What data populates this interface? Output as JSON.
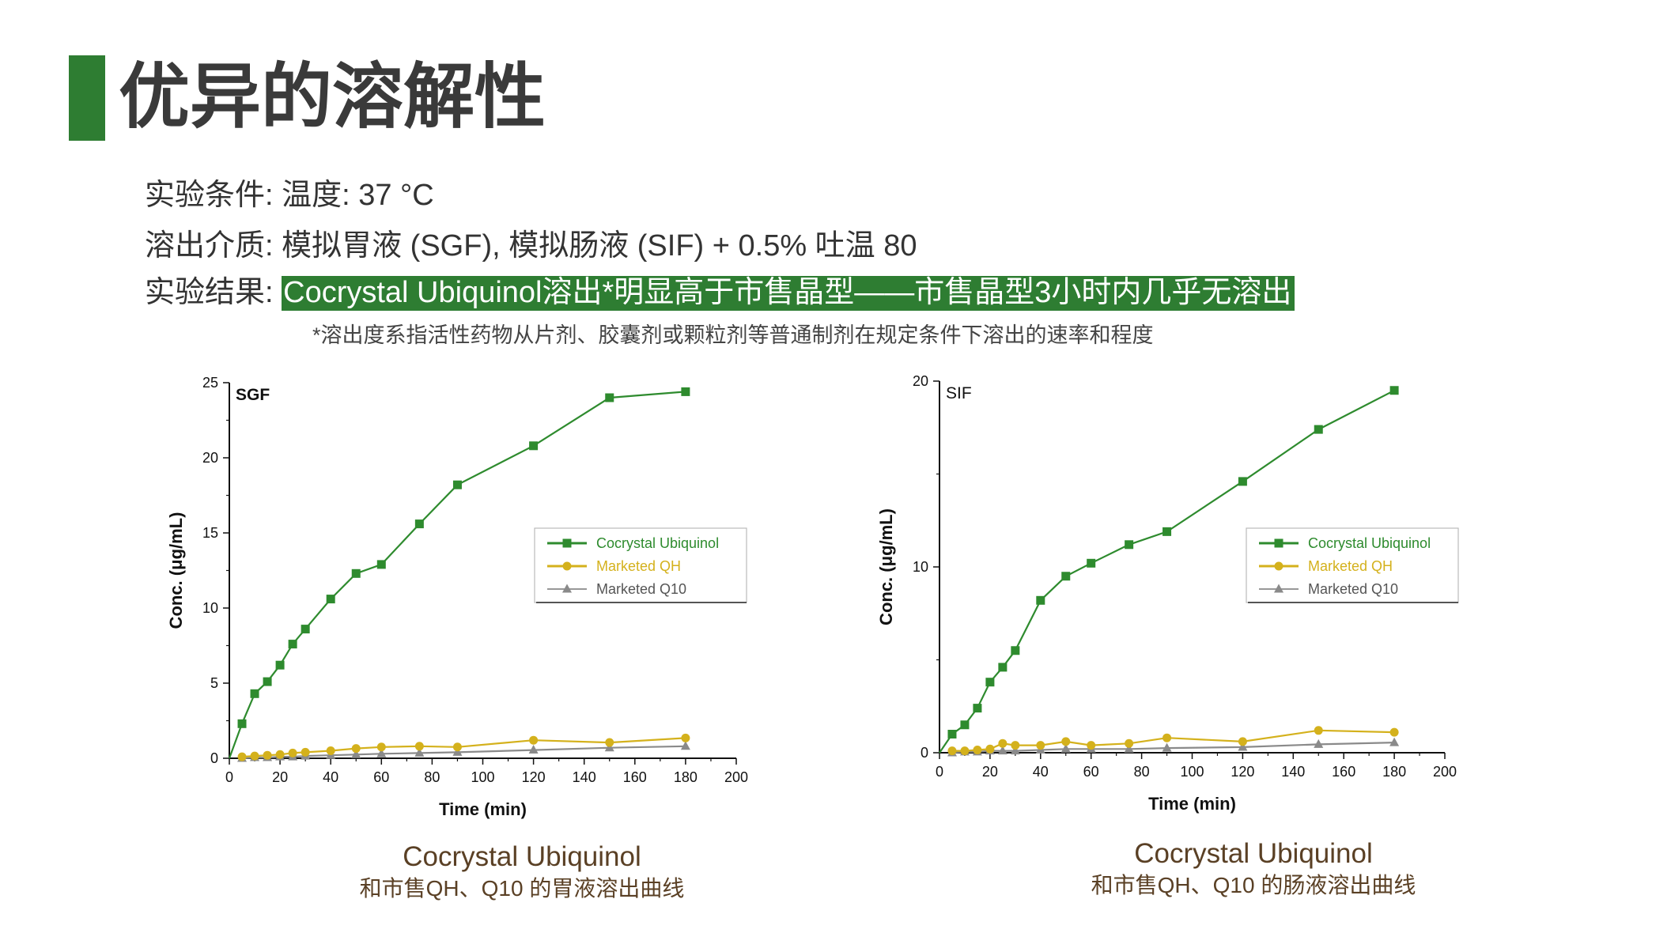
{
  "page": {
    "title": "优异的溶解性",
    "condition_line1": "实验条件: 温度: 37 °C",
    "condition_line2": "溶出介质: 模拟胃液 (SGF), 模拟肠液 (SIF) + 0.5% 吐温 80",
    "result_label": "实验结果: ",
    "result_text": "Cocrystal Ubiquinol溶出*明显高于市售晶型——市售晶型3小时内几乎无溶出",
    "footnote": "*溶出度系指活性药物从片剂、胶囊剂或颗粒剂等普通制剂在规定条件下溶出的速率和程度",
    "accent_color": "#2e7d32"
  },
  "captions": [
    {
      "line1": "Cocrystal Ubiquinol",
      "line2": "和市售QH、Q10 的胃液溶出曲线"
    },
    {
      "line1": "Cocrystal Ubiquinol",
      "line2": "和市售QH、Q10 的肠液溶出曲线"
    }
  ],
  "chart_data": [
    {
      "type": "line",
      "panel_label": "SGF",
      "xlabel": "Time (min)",
      "ylabel": "Conc. (μg/mL)",
      "xlim": [
        0,
        200
      ],
      "ylim": [
        0,
        25
      ],
      "xticks": [
        0,
        20,
        40,
        60,
        80,
        100,
        120,
        140,
        160,
        180,
        200
      ],
      "yticks": [
        0,
        5,
        10,
        15,
        20,
        25
      ],
      "legend_position": "right",
      "series": [
        {
          "name": "Cocrystal Ubiquinol",
          "color": "#2e8b2e",
          "marker": "square",
          "x": [
            0,
            5,
            10,
            15,
            20,
            25,
            30,
            40,
            50,
            60,
            75,
            90,
            120,
            150,
            180
          ],
          "y": [
            0,
            2.3,
            4.3,
            5.1,
            6.2,
            7.6,
            8.6,
            10.6,
            12.3,
            12.9,
            15.6,
            18.2,
            20.8,
            24.0,
            24.4
          ]
        },
        {
          "name": "Marketed QH",
          "color": "#d4b11c",
          "marker": "circle",
          "x": [
            5,
            10,
            15,
            20,
            25,
            30,
            40,
            50,
            60,
            75,
            90,
            120,
            150,
            180
          ],
          "y": [
            0.1,
            0.15,
            0.2,
            0.25,
            0.35,
            0.4,
            0.5,
            0.65,
            0.75,
            0.8,
            0.75,
            1.2,
            1.05,
            1.35
          ]
        },
        {
          "name": "Marketed Q10",
          "color": "#8a8a8a",
          "marker": "triangle",
          "x": [
            5,
            10,
            15,
            20,
            25,
            30,
            40,
            50,
            60,
            75,
            90,
            120,
            150,
            180
          ],
          "y": [
            0,
            0.05,
            0.05,
            0.1,
            0.1,
            0.15,
            0.2,
            0.25,
            0.3,
            0.35,
            0.4,
            0.55,
            0.7,
            0.8
          ]
        }
      ]
    },
    {
      "type": "line",
      "panel_label": "SIF",
      "xlabel": "Time (min)",
      "ylabel": "Conc. (μg/mL)",
      "xlim": [
        0,
        200
      ],
      "ylim": [
        0,
        20
      ],
      "xticks": [
        0,
        20,
        40,
        60,
        80,
        100,
        120,
        140,
        160,
        180,
        200
      ],
      "yticks": [
        0,
        10,
        20
      ],
      "legend_position": "right",
      "series": [
        {
          "name": "Cocrystal Ubiquinol",
          "color": "#2e8b2e",
          "marker": "square",
          "x": [
            0,
            5,
            10,
            15,
            20,
            25,
            30,
            40,
            50,
            60,
            75,
            90,
            120,
            150,
            180
          ],
          "y": [
            0,
            1.0,
            1.5,
            2.4,
            3.8,
            4.6,
            5.5,
            8.2,
            9.5,
            10.2,
            11.2,
            11.9,
            14.6,
            17.4,
            19.5
          ]
        },
        {
          "name": "Marketed QH",
          "color": "#d4b11c",
          "marker": "circle",
          "x": [
            5,
            10,
            15,
            20,
            25,
            30,
            40,
            50,
            60,
            75,
            90,
            120,
            150,
            180
          ],
          "y": [
            0.1,
            0.1,
            0.15,
            0.2,
            0.5,
            0.4,
            0.4,
            0.6,
            0.4,
            0.5,
            0.8,
            0.6,
            1.2,
            1.1
          ]
        },
        {
          "name": "Marketed Q10",
          "color": "#8a8a8a",
          "marker": "triangle",
          "x": [
            5,
            10,
            15,
            20,
            25,
            30,
            40,
            50,
            60,
            75,
            90,
            120,
            150,
            180
          ],
          "y": [
            0,
            0.05,
            0.05,
            0.1,
            0.1,
            0.1,
            0.15,
            0.2,
            0.2,
            0.2,
            0.25,
            0.3,
            0.45,
            0.55
          ]
        }
      ]
    }
  ]
}
